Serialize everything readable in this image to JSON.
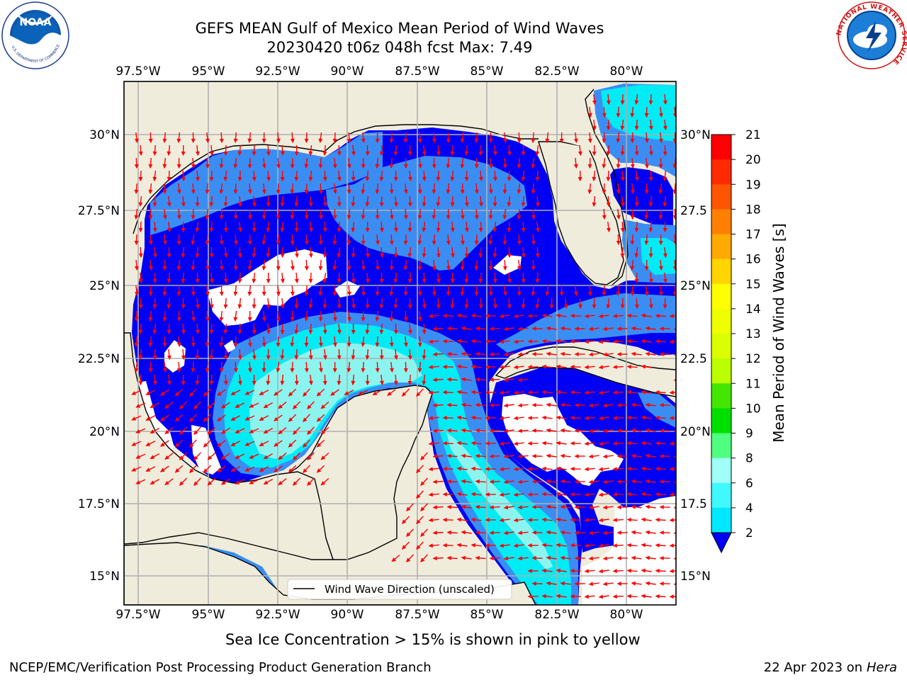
{
  "header": {
    "title_line1": "GEFS MEAN Gulf of Mexico Mean Period of Wind Waves",
    "title_line2": "20230420 t06z 048h fcst   Max: 7.49"
  },
  "map": {
    "lon_labels": [
      "97.5°W",
      "95°W",
      "92.5°W",
      "90°W",
      "87.5°W",
      "85°W",
      "82.5°W",
      "80°W"
    ],
    "lat_labels": [
      "30°N",
      "27.5°N",
      "25°N",
      "22.5°N",
      "20°N",
      "17.5°N",
      "15°N"
    ],
    "right_lat_labels": [
      "30°N",
      "27.5",
      "25°N",
      "22.5",
      "20°N",
      "17.5",
      "15°N"
    ],
    "legend_label": "Wind Wave Direction (unscaled)",
    "colors": {
      "land": "#efecdc",
      "period_2_4": "#0000f5",
      "period_4_6": "#3a8ef3",
      "period_6_7": "#00ecf5",
      "period_7_8": "#8cf4ee",
      "arrow": "#ff0000"
    }
  },
  "colorbar": {
    "label": "Mean Period of Wind Waves [s]",
    "ticks": [
      "21",
      "20",
      "19",
      "18",
      "17",
      "16",
      "15",
      "14",
      "13",
      "12",
      "11",
      "10",
      "9",
      "8",
      "6",
      "4",
      "2"
    ],
    "colors": [
      "#ff0000",
      "#ff2a00",
      "#ff5500",
      "#ff8000",
      "#ffaa00",
      "#ffd400",
      "#ffff00",
      "#f0ff00",
      "#dcff00",
      "#bbff00",
      "#44e600",
      "#00e000",
      "#50ff80",
      "#a0fff8",
      "#40f8ff",
      "#00e8ff",
      "#2070ff"
    ]
  },
  "logos": {
    "noaa_text": "NOAA",
    "noaa_ring": "NATIONAL OCEANIC AND ATMOSPHERIC ADMINISTRATION",
    "noaa_ring_bottom": "U.S. DEPARTMENT OF COMMERCE",
    "nws_ring": "NATIONAL WEATHER SERVICE"
  },
  "footer": {
    "note": "Sea Ice Concentration > 15% is shown in pink to yellow",
    "credit": "NCEP/EMC/Verification Post Processing Product Generation Branch",
    "date": "22 Apr 2023 on ",
    "machine": "Hera"
  }
}
